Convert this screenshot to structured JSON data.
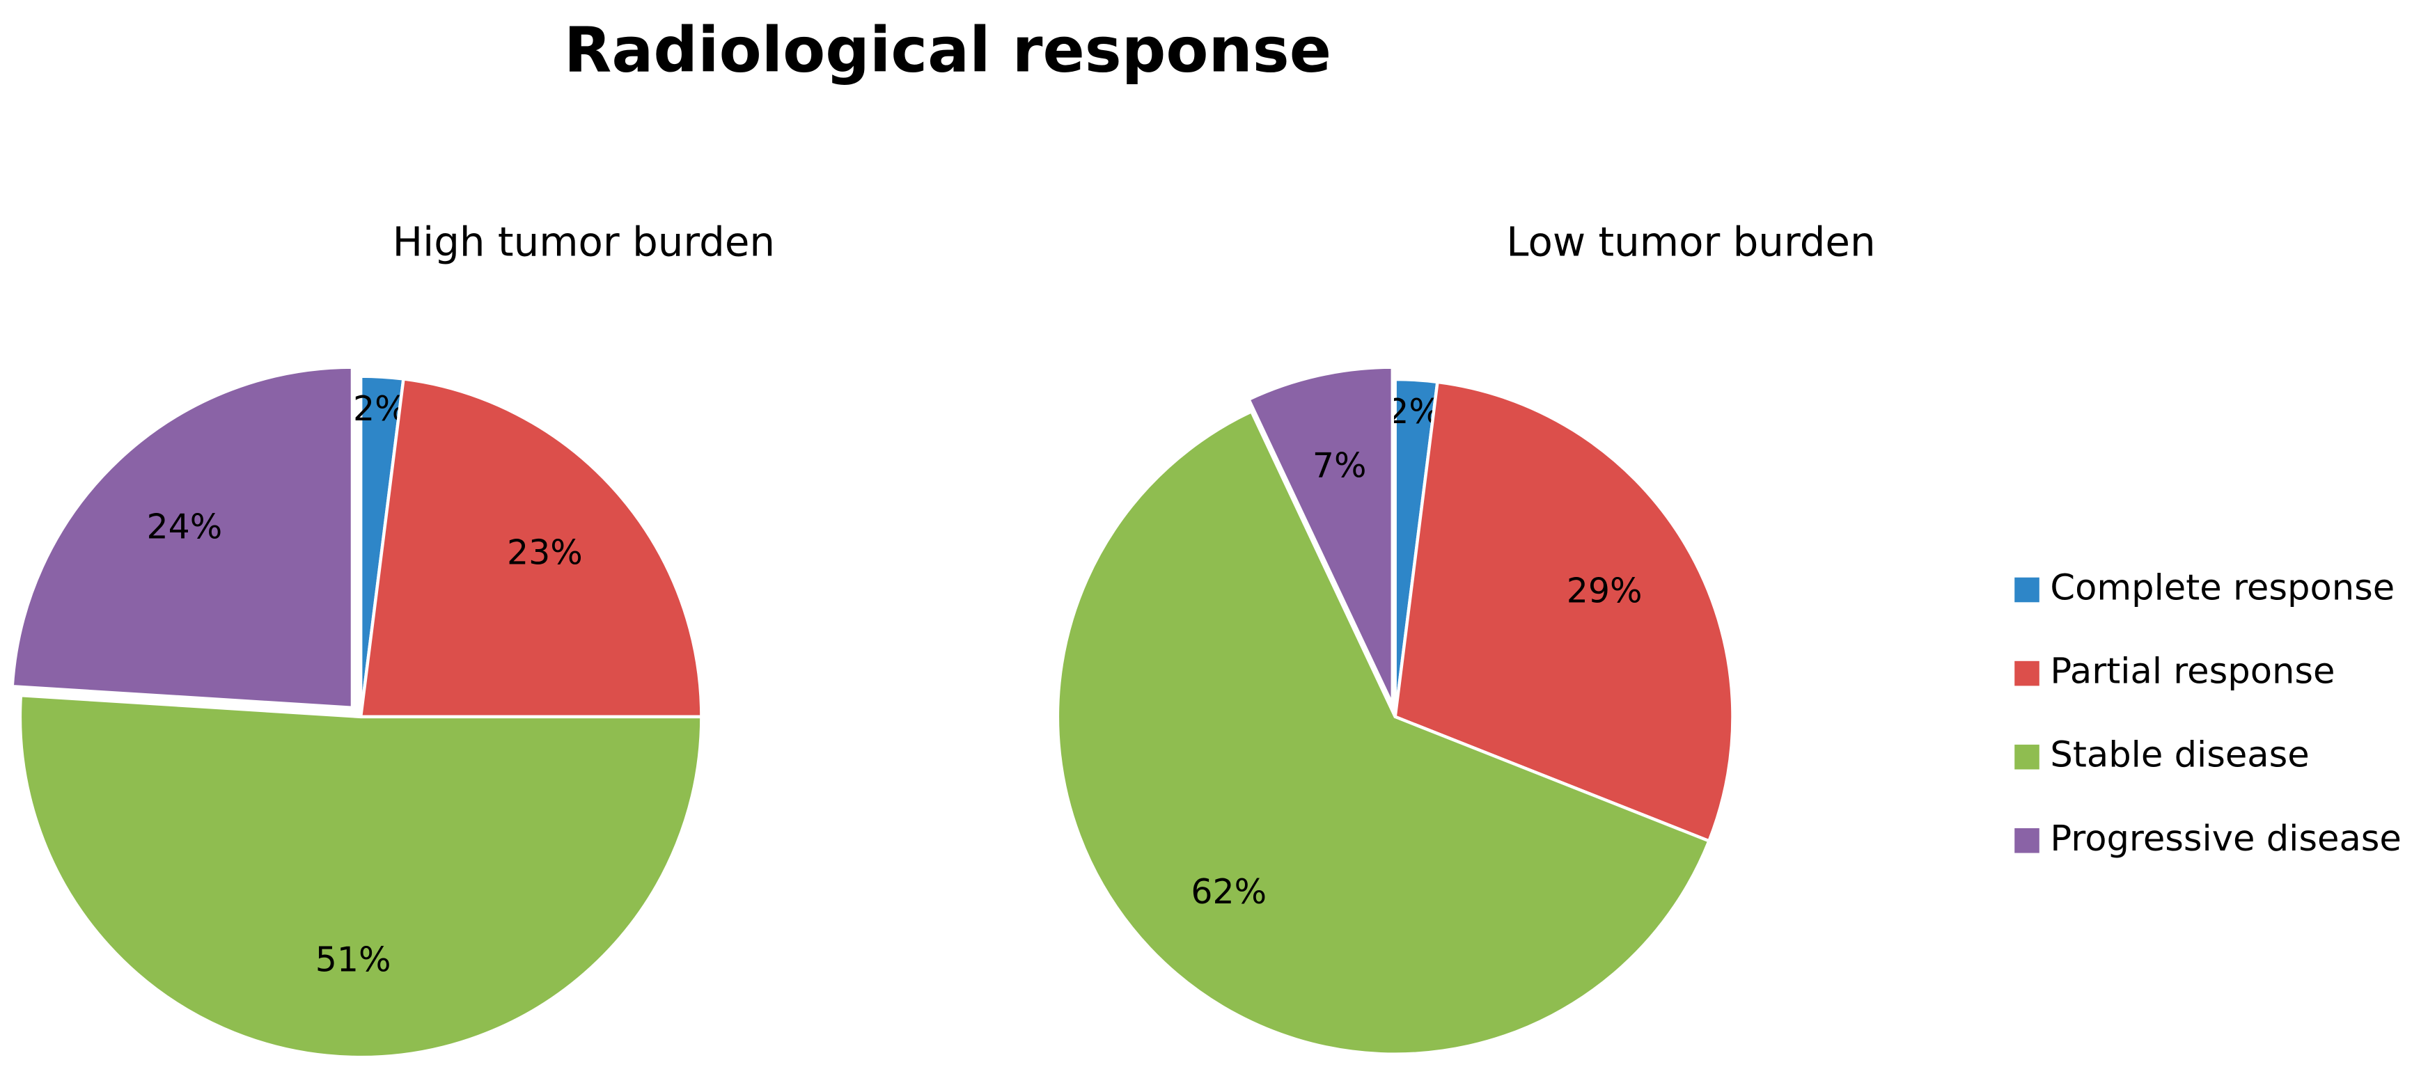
{
  "title": "Radiological response",
  "legend": "right",
  "chart_data": [
    {
      "type": "pie",
      "title": "High tumor burden",
      "categories": [
        "Complete response",
        "Partial response",
        "Stable disease",
        "Progressive disease"
      ],
      "values": [
        2,
        23,
        51,
        24
      ],
      "value_labels": [
        "2%",
        "23%",
        "51%",
        "24%"
      ],
      "colors": [
        "#2e86c8",
        "#dc4f4b",
        "#8fbd50",
        "#8a63a6"
      ]
    },
    {
      "type": "pie",
      "title": "Low tumor burden",
      "categories": [
        "Complete response",
        "Partial response",
        "Stable disease",
        "Progressive disease"
      ],
      "values": [
        2,
        29,
        62,
        7
      ],
      "value_labels": [
        "2%",
        "29%",
        "62%",
        "7%"
      ],
      "colors": [
        "#2e86c8",
        "#dc4f4b",
        "#8fbd50",
        "#8a63a6"
      ]
    }
  ]
}
